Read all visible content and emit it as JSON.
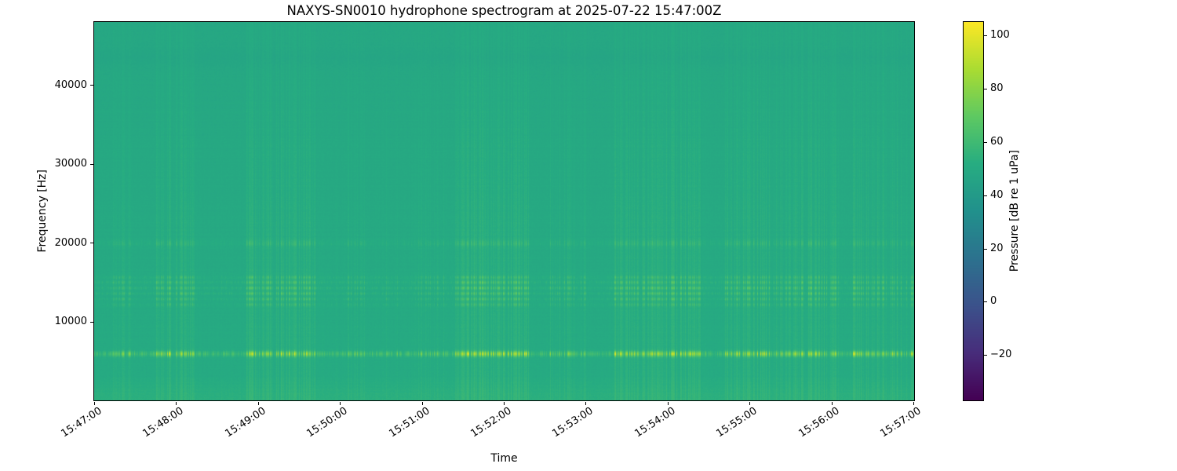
{
  "chart_data": {
    "type": "heatmap",
    "variant": "spectrogram",
    "title": "NAXYS-SN0010 hydrophone spectrogram at 2025-07-22 15:47:00Z",
    "xlabel": "Time",
    "ylabel": "Frequency [Hz]",
    "time_span": {
      "start": "15:47:00",
      "end": "15:57:00",
      "duration_s": 600
    },
    "x_ticks": [
      "15:47:00",
      "15:48:00",
      "15:49:00",
      "15:50:00",
      "15:51:00",
      "15:52:00",
      "15:53:00",
      "15:54:00",
      "15:55:00",
      "15:56:00",
      "15:57:00"
    ],
    "y_ticks": [
      {
        "value": 10000,
        "label": "10000"
      },
      {
        "value": 20000,
        "label": "20000"
      },
      {
        "value": 30000,
        "label": "30000"
      },
      {
        "value": 40000,
        "label": "40000"
      }
    ],
    "y_range_hz": [
      0,
      48000
    ],
    "colorbar": {
      "label": "Pressure [dB re 1 uPa]",
      "vmin": -37,
      "vmax": 105,
      "ticks": [
        {
          "value": 100,
          "label": "100"
        },
        {
          "value": 80,
          "label": "80"
        },
        {
          "value": 60,
          "label": "60"
        },
        {
          "value": 40,
          "label": "40"
        },
        {
          "value": 20,
          "label": "20"
        },
        {
          "value": 0,
          "label": "0"
        },
        {
          "value": -20,
          "label": "−20"
        }
      ]
    },
    "colormap": {
      "name": "viridis",
      "stops": [
        {
          "t": 0.0,
          "color": "#440154"
        },
        {
          "t": 0.125,
          "color": "#472d7b"
        },
        {
          "t": 0.25,
          "color": "#3b528b"
        },
        {
          "t": 0.375,
          "color": "#2c728e"
        },
        {
          "t": 0.5,
          "color": "#21918c"
        },
        {
          "t": 0.625,
          "color": "#27ad81"
        },
        {
          "t": 0.75,
          "color": "#5ec962"
        },
        {
          "t": 0.875,
          "color": "#aadc32"
        },
        {
          "t": 1.0,
          "color": "#fde725"
        }
      ]
    },
    "background_level_db": 49.5,
    "pixel_noise_db": 1.1,
    "vertical_gradient_db": {
      "bottom": 1.0,
      "top": -1.0
    },
    "low_freq_band": {
      "cutoff_hz": 3000,
      "boost_db": 3.2
    },
    "dim_band": {
      "freq_hz": 43500,
      "sigma_hz": 900,
      "boost_db": -1.6
    },
    "baseline_activity": 0.1,
    "tonal_bands": [
      {
        "freq_hz": 5900,
        "sigma_hz": 240,
        "quiet_db": 11,
        "burst_db": 40
      },
      {
        "freq_hz": 12150,
        "sigma_hz": 140,
        "quiet_db": 2,
        "burst_db": 10
      },
      {
        "freq_hz": 12850,
        "sigma_hz": 140,
        "quiet_db": 2.5,
        "burst_db": 13
      },
      {
        "freq_hz": 13550,
        "sigma_hz": 150,
        "quiet_db": 3,
        "burst_db": 15
      },
      {
        "freq_hz": 14250,
        "sigma_hz": 150,
        "quiet_db": 3.5,
        "burst_db": 17
      },
      {
        "freq_hz": 14950,
        "sigma_hz": 160,
        "quiet_db": 3.5,
        "burst_db": 15
      },
      {
        "freq_hz": 15600,
        "sigma_hz": 140,
        "quiet_db": 2.5,
        "burst_db": 11
      },
      {
        "freq_hz": 19900,
        "sigma_hz": 260,
        "quiet_db": 2,
        "burst_db": 7
      }
    ],
    "activity_bursts": [
      {
        "start_s": 9,
        "end_s": 27,
        "intensity": 0.5
      },
      {
        "start_s": 45,
        "end_s": 75,
        "intensity": 0.8
      },
      {
        "start_s": 111,
        "end_s": 162,
        "intensity": 0.9
      },
      {
        "start_s": 180,
        "end_s": 200,
        "intensity": 0.4
      },
      {
        "start_s": 213,
        "end_s": 226,
        "intensity": 0.35
      },
      {
        "start_s": 237,
        "end_s": 256,
        "intensity": 0.45
      },
      {
        "start_s": 264,
        "end_s": 318,
        "intensity": 1.0
      },
      {
        "start_s": 333,
        "end_s": 360,
        "intensity": 0.6
      },
      {
        "start_s": 381,
        "end_s": 444,
        "intensity": 0.95
      },
      {
        "start_s": 462,
        "end_s": 546,
        "intensity": 0.85
      },
      {
        "start_s": 555,
        "end_s": 600,
        "intensity": 0.8
      }
    ]
  }
}
